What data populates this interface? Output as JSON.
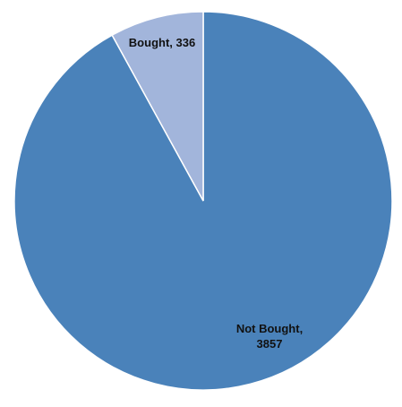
{
  "chart_data": {
    "type": "pie",
    "title": "",
    "slices": [
      {
        "label": "Not Bought",
        "value": 3857,
        "label_lines": [
          "Not Bought,",
          "3857"
        ],
        "color": "#4a82ba"
      },
      {
        "label": "Bought",
        "value": 336,
        "label_lines": [
          "Bought, 336"
        ],
        "color": "#a2b5db"
      }
    ],
    "start_angle_deg": 0,
    "direction": "clockwise",
    "legend": "none"
  }
}
